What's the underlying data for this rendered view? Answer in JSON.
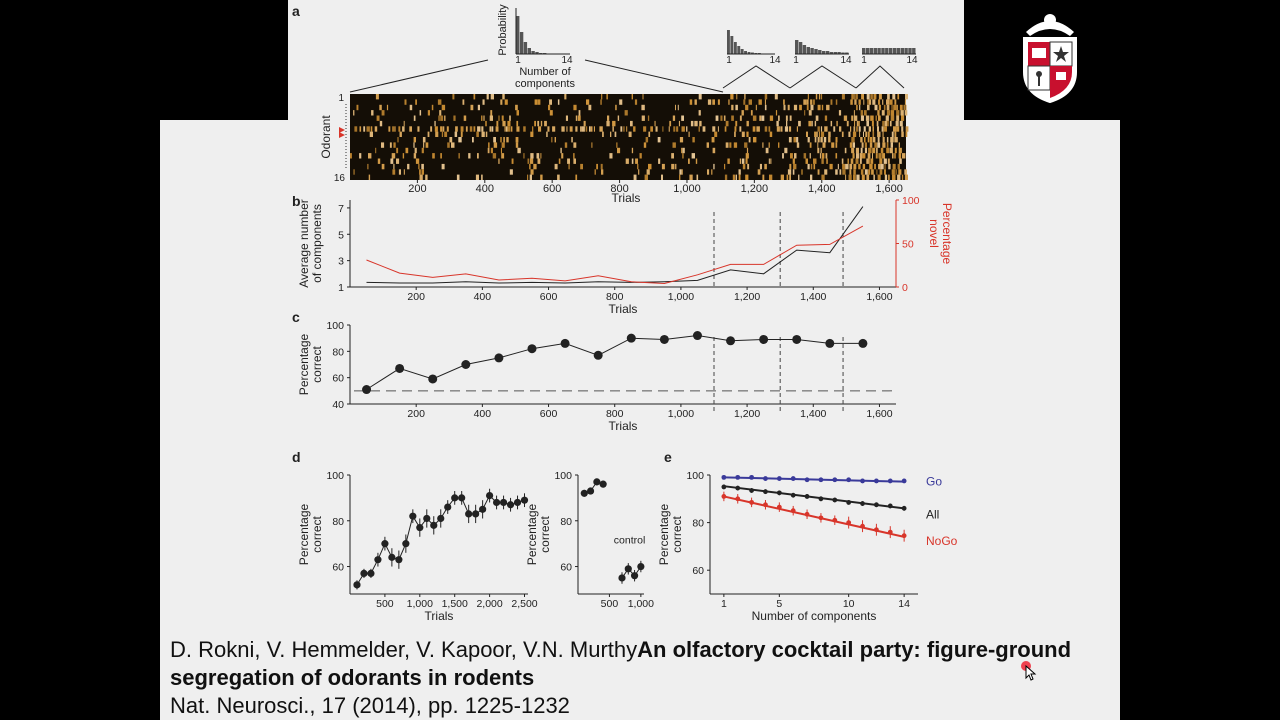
{
  "panel_labels": {
    "a": "a",
    "b": "b",
    "c": "c",
    "d": "d",
    "e": "e"
  },
  "panel_a": {
    "hist_ylabel": "Probability",
    "hist_xlabel_line1": "Number of",
    "hist_xlabel_line2": "components",
    "hist_tick_min": "1",
    "hist_tick_max": "14",
    "heatmap_ylabel": "Odorant",
    "heatmap_ytick_top": "1",
    "heatmap_ytick_bottom": "16",
    "xlabel": "Trials",
    "xticks": [
      "200",
      "400",
      "600",
      "800",
      "1,000",
      "1,200",
      "1,400",
      "1,600"
    ]
  },
  "citation": {
    "authors": "D. Rokni, V. Hemmelder, V. Kapoor, V.N. Murthy",
    "title": "An olfactory cocktail party: figure-ground segregation of odorants in rodents",
    "journal": "Nat. Neurosci., 17 (2014), pp. 1225-1232"
  },
  "colors": {
    "red": "#d8352a",
    "blue": "#3a3a9a",
    "black": "#222222",
    "slide": "#efefef"
  },
  "chart_data": [
    {
      "id": "b",
      "type": "line",
      "xlabel": "Trials",
      "ylabel_line1": "Average number",
      "ylabel_line2": "of components",
      "y2label_line1": "Percentage",
      "y2label_line2": "novel",
      "xlim": [
        0,
        1650
      ],
      "ylim": [
        1,
        7.6
      ],
      "y2lim": [
        0,
        100
      ],
      "xticks": [
        200,
        400,
        600,
        800,
        1000,
        1200,
        1400,
        1600
      ],
      "xtick_labels": [
        "200",
        "400",
        "600",
        "800",
        "1,000",
        "1,200",
        "1,400",
        "1,600"
      ],
      "yticks": [
        1,
        3,
        5,
        7
      ],
      "ytick_labels": [
        "1",
        "3",
        "5",
        "7"
      ],
      "y2ticks": [
        0,
        50,
        100
      ],
      "y2tick_labels": [
        "0",
        "50",
        "100"
      ],
      "vlines": [
        1100,
        1300,
        1490
      ],
      "series": [
        {
          "axis": "left",
          "color": "#222222",
          "x": [
            50,
            150,
            250,
            350,
            450,
            550,
            650,
            750,
            850,
            950,
            1050,
            1150,
            1250,
            1350,
            1450,
            1550
          ],
          "y": [
            1.35,
            1.3,
            1.3,
            1.4,
            1.3,
            1.35,
            1.3,
            1.4,
            1.35,
            1.4,
            1.5,
            2.3,
            2.0,
            3.8,
            3.6,
            7.1
          ]
        },
        {
          "axis": "right",
          "color": "#d8352a",
          "x": [
            50,
            150,
            250,
            350,
            450,
            550,
            650,
            750,
            850,
            950,
            1050,
            1150,
            1250,
            1350,
            1450,
            1550
          ],
          "y": [
            31,
            16,
            11,
            15,
            8,
            10,
            7,
            13,
            6,
            4,
            14,
            26,
            26,
            48,
            49,
            70
          ]
        }
      ]
    },
    {
      "id": "c",
      "type": "line",
      "xlabel": "Trials",
      "ylabel_line1": "Percentage",
      "ylabel_line2": "correct",
      "xlim": [
        0,
        1650
      ],
      "ylim": [
        40,
        100
      ],
      "xticks": [
        200,
        400,
        600,
        800,
        1000,
        1200,
        1400,
        1600
      ],
      "xtick_labels": [
        "200",
        "400",
        "600",
        "800",
        "1,000",
        "1,200",
        "1,400",
        "1,600"
      ],
      "yticks": [
        40,
        60,
        80,
        100
      ],
      "ytick_labels": [
        "40",
        "60",
        "80",
        "100"
      ],
      "chance": 50,
      "vlines": [
        1100,
        1300,
        1490
      ],
      "series": [
        {
          "color": "#222222",
          "x": [
            50,
            150,
            250,
            350,
            450,
            550,
            650,
            750,
            850,
            950,
            1050,
            1150,
            1250,
            1350,
            1450,
            1550
          ],
          "y": [
            51,
            67,
            59,
            70,
            75,
            82,
            86,
            77,
            90,
            89,
            92,
            88,
            89,
            89,
            86,
            86
          ]
        }
      ]
    },
    {
      "id": "d_main",
      "type": "line",
      "xlabel": "Trials",
      "ylabel_line1": "Percentage",
      "ylabel_line2": "correct",
      "xlim": [
        0,
        2550
      ],
      "ylim": [
        48,
        100
      ],
      "xticks": [
        500,
        1000,
        1500,
        2000,
        2500
      ],
      "xtick_labels": [
        "500",
        "1,000",
        "1,500",
        "2,000",
        "2,500"
      ],
      "yticks": [
        60,
        80,
        100
      ],
      "ytick_labels": [
        "60",
        "80",
        "100"
      ],
      "series": [
        {
          "color": "#222222",
          "x": [
            100,
            200,
            300,
            400,
            500,
            600,
            700,
            800,
            900,
            1000,
            1100,
            1200,
            1300,
            1400,
            1500,
            1600,
            1700,
            1800,
            1900,
            2000,
            2100,
            2200,
            2300,
            2400,
            2500
          ],
          "y": [
            52,
            57,
            57,
            63,
            70,
            64,
            63,
            70,
            82,
            77,
            81,
            78,
            81,
            86,
            90,
            90,
            83,
            83,
            85,
            91,
            88,
            88,
            87,
            88,
            89
          ],
          "err": [
            2,
            2,
            2,
            3,
            3,
            4,
            4,
            4,
            3,
            4,
            4,
            4,
            4,
            3,
            3,
            3,
            4,
            4,
            4,
            3,
            3,
            3,
            3,
            3,
            3
          ]
        }
      ]
    },
    {
      "id": "d_inset",
      "type": "scatter",
      "ylabel_line1": "Percentage",
      "ylabel_line2": "correct",
      "xlim": [
        0,
        1050
      ],
      "ylim": [
        48,
        100
      ],
      "xticks": [
        500,
        1000
      ],
      "xtick_labels": [
        "500",
        "1,000"
      ],
      "yticks": [
        60,
        80,
        100
      ],
      "ytick_labels": [
        "60",
        "80",
        "100"
      ],
      "annotation": "control",
      "series": [
        {
          "color": "#222222",
          "x": [
            100,
            200,
            300,
            400
          ],
          "y": [
            92,
            93,
            97,
            96
          ],
          "err": [
            1.5,
            1.5,
            1.5,
            1.5
          ]
        },
        {
          "color": "#222222",
          "x": [
            700,
            800,
            900,
            1000
          ],
          "y": [
            55,
            59,
            56,
            60
          ],
          "err": [
            2.5,
            2.5,
            2.5,
            2.5
          ]
        }
      ]
    },
    {
      "id": "e",
      "type": "line",
      "xlabel": "Number of components",
      "ylabel_line1": "Percentage",
      "ylabel_line2": "correct",
      "xlim": [
        0,
        15
      ],
      "ylim": [
        50,
        100
      ],
      "xticks": [
        1,
        5,
        10,
        14
      ],
      "xtick_labels": [
        "1",
        "5",
        "10",
        "14"
      ],
      "yticks": [
        60,
        80,
        100
      ],
      "ytick_labels": [
        "60",
        "80",
        "100"
      ],
      "series": [
        {
          "name": "Go",
          "color": "#3a3a9a",
          "x": [
            1,
            2,
            3,
            4,
            5,
            6,
            7,
            8,
            9,
            10,
            11,
            12,
            13,
            14
          ],
          "y": [
            99,
            99,
            99,
            98.5,
            98.5,
            98.5,
            98,
            98,
            98,
            98,
            97.5,
            97.5,
            97.5,
            97.5
          ],
          "err": [
            0.5,
            0.5,
            0.5,
            0.5,
            0.5,
            0.5,
            0.5,
            0.5,
            0.5,
            0.5,
            0.5,
            0.5,
            0.5,
            0.5
          ],
          "fit": [
            99,
            97.2
          ]
        },
        {
          "name": "All",
          "color": "#222222",
          "x": [
            1,
            2,
            3,
            4,
            5,
            6,
            7,
            8,
            9,
            10,
            11,
            12,
            13,
            14
          ],
          "y": [
            95,
            94.5,
            93.5,
            93,
            92.5,
            91.5,
            91,
            90,
            89.5,
            88.5,
            88,
            87.5,
            87,
            86
          ],
          "err": [
            1,
            1,
            1,
            1,
            1,
            1,
            1,
            1,
            1,
            1,
            1,
            1,
            1,
            1
          ],
          "fit": [
            95.3,
            86
          ]
        },
        {
          "name": "NoGo",
          "color": "#d8352a",
          "x": [
            1,
            2,
            3,
            4,
            5,
            6,
            7,
            8,
            9,
            10,
            11,
            12,
            13,
            14
          ],
          "y": [
            91,
            90,
            88.5,
            87.5,
            86.5,
            85,
            83.5,
            82,
            81,
            80,
            78.5,
            77,
            76,
            74.5
          ],
          "err": [
            2,
            2,
            2,
            2,
            2,
            2,
            2,
            2,
            2,
            2.5,
            2.5,
            2.5,
            2.5,
            2.5
          ],
          "fit": [
            91,
            74
          ]
        }
      ]
    }
  ]
}
